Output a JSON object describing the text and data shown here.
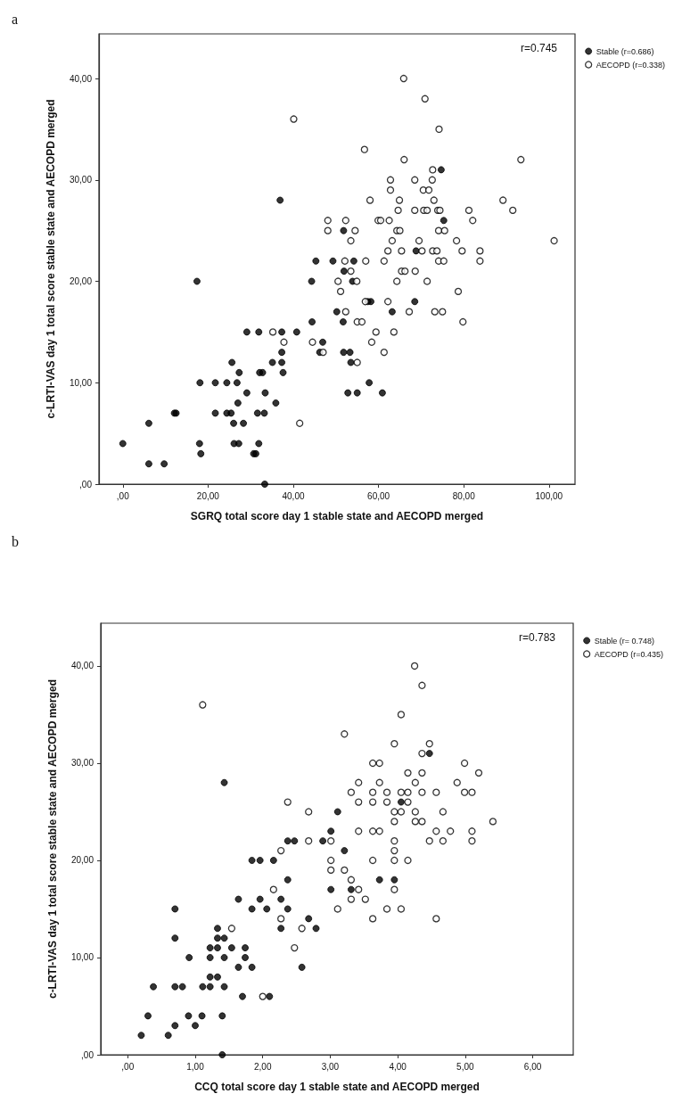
{
  "chart_data": [
    {
      "type": "scatter",
      "title": "a",
      "xlabel": "SGRQ total score day 1 stable state and AECOPD merged",
      "ylabel": "c-LRTI-VAS day 1 total score stable state and AECOPD merged",
      "annotations": [
        "r=0.745"
      ],
      "legend": "top right",
      "grid": false,
      "xlim": [
        -5.6,
        106.1
      ],
      "xticks": [
        {
          "value": 0,
          "label": ",00"
        },
        {
          "value": 20,
          "label": "20,00"
        },
        {
          "value": 40,
          "label": "40,00"
        },
        {
          "value": 60,
          "label": "60,00"
        },
        {
          "value": 80,
          "label": "80,00"
        },
        {
          "value": 100,
          "label": "100,00"
        }
      ],
      "ylim": [
        0,
        44.4
      ],
      "yticks": [
        {
          "value": 0,
          "label": ",00"
        },
        {
          "value": 10,
          "label": "10,00"
        },
        {
          "value": 20,
          "label": "20,00"
        },
        {
          "value": 30,
          "label": "30,00"
        },
        {
          "value": 40,
          "label": "40,00"
        }
      ],
      "series": [
        {
          "name": "Stable (r=0.686)",
          "color": "#000000",
          "marker": "circle",
          "x": [
            0,
            6.1,
            6.1,
            9.7,
            12.1,
            12.5,
            17.4,
            18.1,
            18,
            18.3,
            21.7,
            21.7,
            24.4,
            24.4,
            25.4,
            25.6,
            26.8,
            27.3,
            27,
            26,
            28.3,
            26.1,
            27.2,
            29.1,
            30.7,
            31.2,
            31.6,
            33.2,
            31.9,
            32.1,
            32.8,
            33.4,
            33.3,
            29.1,
            31.9,
            35.9,
            35.1,
            37.3,
            37.3,
            37.3,
            37.6,
            36.9,
            40.8,
            44.3,
            44.4,
            45.3,
            46.9,
            46.2,
            49.3,
            50.2,
            51.7,
            51.8,
            51.9,
            51.8,
            74.7,
            75.3,
            68.8,
            54.2,
            53.9,
            57.5,
            58.2,
            68.5,
            63.2,
            53.3,
            53.5,
            57.8,
            52.8,
            55,
            60.9
          ],
          "values": [
            4,
            6,
            2,
            2,
            7,
            7,
            20,
            10,
            4,
            3,
            10,
            7,
            10,
            7,
            7,
            12,
            10,
            11,
            8,
            6,
            6,
            4,
            4,
            9,
            3,
            3,
            7,
            7,
            4,
            11,
            11,
            9,
            0,
            15,
            15,
            8,
            12,
            15,
            13,
            12,
            11,
            28,
            15,
            20,
            16,
            22,
            14,
            13,
            22,
            17,
            16,
            25,
            21,
            13,
            31,
            26,
            23,
            22,
            20,
            18,
            18,
            18,
            17,
            13,
            12,
            10,
            9,
            9,
            9
          ]
        },
        {
          "name": "AECOPD (r=0.338)",
          "color": "#000000",
          "marker": "open_circle",
          "x": [
            40.1,
            35.2,
            37.8,
            41.5,
            44.5,
            47,
            48.1,
            48.1,
            50.5,
            65.9,
            70.9,
            74.2,
            56.7,
            66,
            93.4,
            72.7,
            62.8,
            68.5,
            72.6,
            62.8,
            70.5,
            71.8,
            58,
            64.9,
            73,
            89.2,
            64.6,
            68.5,
            70.6,
            71.4,
            73.9,
            74.4,
            81.2,
            91.5,
            52.3,
            59.9,
            60.5,
            62.5,
            82.1,
            54.5,
            64.3,
            65,
            74.1,
            75.5,
            53.5,
            63.2,
            69.5,
            78.3,
            101.2,
            62.2,
            65.4,
            70.2,
            72.7,
            73.7,
            79.6,
            83.8,
            52.1,
            57,
            61.3,
            74.1,
            75.3,
            83.8,
            53.5,
            65.4,
            66.2,
            68.6,
            54.9,
            64.3,
            71.4,
            51.1,
            78.7,
            56.9,
            62.2,
            52.3,
            67.2,
            73.2,
            75,
            55,
            56.1,
            79.8,
            59.4,
            63.6,
            58.4,
            61.3,
            55
          ],
          "values": [
            36,
            15,
            14,
            6,
            14,
            13,
            26,
            25,
            20,
            40,
            38,
            35,
            33,
            32,
            32,
            31,
            30,
            30,
            30,
            29,
            29,
            29,
            28,
            28,
            28,
            28,
            27,
            27,
            27,
            27,
            27,
            27,
            27,
            27,
            26,
            26,
            26,
            26,
            26,
            25,
            25,
            25,
            25,
            25,
            24,
            24,
            24,
            24,
            24,
            23,
            23,
            23,
            23,
            23,
            23,
            23,
            22,
            22,
            22,
            22,
            22,
            22,
            21,
            21,
            21,
            21,
            20,
            20,
            20,
            19,
            19,
            18,
            18,
            17,
            17,
            17,
            17,
            16,
            16,
            16,
            15,
            15,
            14,
            13,
            12
          ]
        }
      ]
    },
    {
      "type": "scatter",
      "title": "b",
      "xlabel": "CCQ total score day 1 stable state and AECOPD merged",
      "ylabel": "c-LRTI-VAS day 1 total score stable state and AECOPD merged",
      "annotations": [
        "r=0.783"
      ],
      "legend": "top right",
      "grid": false,
      "xlim": [
        -0.4,
        6.6
      ],
      "xticks": [
        {
          "value": 0,
          "label": ",00"
        },
        {
          "value": 1,
          "label": "1,00"
        },
        {
          "value": 2,
          "label": "2,00"
        },
        {
          "value": 3,
          "label": "3,00"
        },
        {
          "value": 4,
          "label": "4,00"
        },
        {
          "value": 5,
          "label": "5,00"
        },
        {
          "value": 6,
          "label": "6,00"
        }
      ],
      "ylim": [
        0,
        44.4
      ],
      "yticks": [
        {
          "value": 0,
          "label": ",00"
        },
        {
          "value": 10,
          "label": "10,00"
        },
        {
          "value": 20,
          "label": "20,00"
        },
        {
          "value": 30,
          "label": "30,00"
        },
        {
          "value": 40,
          "label": "40,00"
        }
      ],
      "series": [
        {
          "name": "Stable (r= 0.748)",
          "color": "#000000",
          "marker": "circle",
          "x": [
            1.43,
            3.11,
            3.01,
            2.37,
            2.47,
            2.89,
            3.21,
            1.84,
            1.96,
            2.16,
            2.37,
            3.01,
            1.64,
            1.96,
            2.27,
            0.7,
            1.84,
            2.06,
            2.37,
            2.68,
            1.33,
            2.27,
            2.79,
            0.7,
            1.33,
            1.43,
            1.22,
            1.33,
            1.54,
            1.74,
            0.91,
            1.22,
            1.43,
            1.74,
            1.64,
            1.84,
            2.58,
            1.22,
            1.33,
            0.38,
            0.7,
            0.81,
            1.11,
            1.22,
            1.43,
            0.2,
            0.3,
            0.6,
            0.7,
            0.9,
            1,
            1.1,
            1.4,
            1.4,
            1.7,
            2.1,
            4.47,
            4.05,
            3.73,
            3.95,
            3.31
          ],
          "values": [
            28,
            25,
            23,
            22,
            22,
            22,
            21,
            20,
            20,
            20,
            18,
            17,
            16,
            16,
            16,
            15,
            15,
            15,
            15,
            14,
            13,
            13,
            13,
            12,
            12,
            12,
            11,
            11,
            11,
            11,
            10,
            10,
            10,
            10,
            9,
            9,
            9,
            8,
            8,
            7,
            7,
            7,
            7,
            7,
            7,
            2,
            4,
            2,
            3,
            4,
            3,
            4,
            4,
            0,
            6,
            6,
            31,
            26,
            18,
            18,
            17
          ]
        },
        {
          "name": "AECOPD (r=0.435)",
          "color": "#000000",
          "marker": "open_circle",
          "x": [
            1.11,
            3.21,
            2.37,
            2.68,
            2.68,
            3.01,
            2.27,
            3.01,
            3.01,
            3.21,
            2.16,
            3.11,
            2.27,
            1.54,
            2.58,
            2.47,
            2,
            4.25,
            4.36,
            4.05,
            3.95,
            4.47,
            4.36,
            3.63,
            3.73,
            4.99,
            4.15,
            4.36,
            5.2,
            3.42,
            3.73,
            4.26,
            4.88,
            3.31,
            3.63,
            3.84,
            4.05,
            4.15,
            4.36,
            4.57,
            4.99,
            5.1,
            3.42,
            3.63,
            3.84,
            4.15,
            3.95,
            4.05,
            4.26,
            4.67,
            3.95,
            4.26,
            4.36,
            5.41,
            3.42,
            3.63,
            3.73,
            4.57,
            4.78,
            5.1,
            3.95,
            4.47,
            4.67,
            5.1,
            3.95,
            3.63,
            3.95,
            4.15,
            3.31,
            3.42,
            3.95,
            3.31,
            3.52,
            3.84,
            4.05,
            3.63,
            4.57
          ],
          "values": [
            36,
            33,
            26,
            25,
            22,
            22,
            21,
            20,
            19,
            19,
            17,
            15,
            14,
            13,
            13,
            11,
            6,
            40,
            38,
            35,
            32,
            32,
            31,
            30,
            30,
            30,
            29,
            29,
            29,
            28,
            28,
            28,
            28,
            27,
            27,
            27,
            27,
            27,
            27,
            27,
            27,
            27,
            26,
            26,
            26,
            26,
            25,
            25,
            25,
            25,
            24,
            24,
            24,
            24,
            23,
            23,
            23,
            23,
            23,
            23,
            22,
            22,
            22,
            22,
            21,
            20,
            20,
            20,
            18,
            17,
            17,
            16,
            16,
            15,
            15,
            14,
            14
          ]
        }
      ]
    }
  ]
}
